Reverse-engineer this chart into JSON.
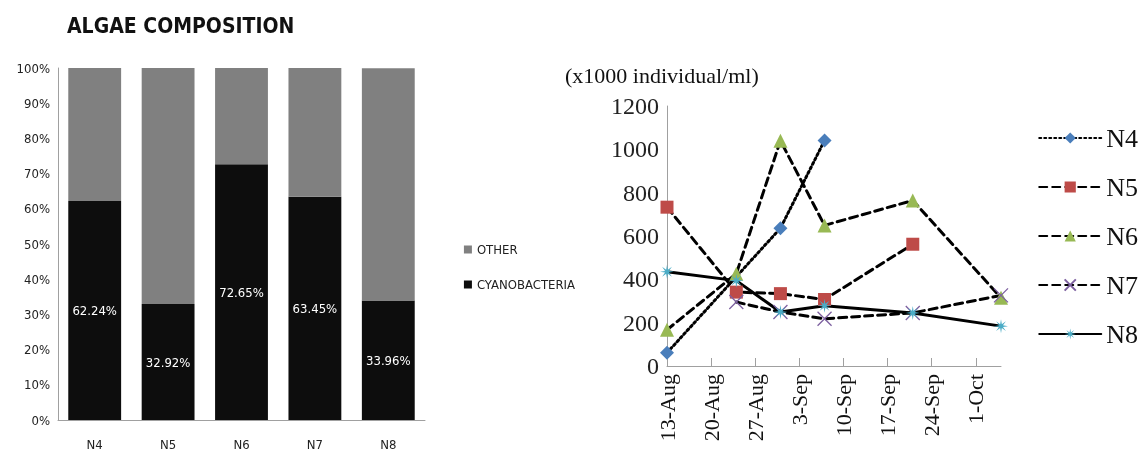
{
  "chart_data": [
    {
      "type": "bar",
      "title": "ALGAE COMPOSITION",
      "stacked": true,
      "categories": [
        "N4",
        "N5",
        "N6",
        "N7",
        "N8"
      ],
      "series": [
        {
          "name": "CYANOBACTERIA",
          "color": "#0d0d0d",
          "values": [
            62.24,
            32.92,
            72.65,
            63.45,
            33.96
          ],
          "value_labels": [
            "62.24%",
            "32.92%",
            "72.65%",
            "63.45%",
            "33.96%"
          ]
        },
        {
          "name": "OTHER",
          "color": "#808080",
          "values": [
            37.8,
            67.1,
            27.4,
            36.6,
            66.0
          ]
        }
      ],
      "ylim": [
        0,
        100
      ],
      "yticks": [
        {
          "value": 0,
          "label": "0%"
        },
        {
          "value": 10,
          "label": "10%"
        },
        {
          "value": 20,
          "label": "20%"
        },
        {
          "value": 30,
          "label": "30%"
        },
        {
          "value": 40,
          "label": "40%"
        },
        {
          "value": 50,
          "label": "50%"
        },
        {
          "value": 60,
          "label": "60%"
        },
        {
          "value": 70,
          "label": "70%"
        },
        {
          "value": 80,
          "label": "80%"
        },
        {
          "value": 90,
          "label": "90%"
        },
        {
          "value": 100,
          "label": "100%"
        }
      ],
      "grid": false,
      "legend": "right"
    },
    {
      "type": "line",
      "ylabel": "(x1000 individual/ml)",
      "series": [
        {
          "name": "N4",
          "color": "#4a7ebb",
          "marker": "diamond",
          "line_style": "dotted",
          "x": [
            "--08-13",
            "--08-31",
            "--09-07"
          ],
          "values": [
            61,
            636,
            1041
          ]
        },
        {
          "name": "N5",
          "color": "#be4b48",
          "marker": "square",
          "line_style": "dashed",
          "x": [
            "--08-13",
            "--08-24",
            "--08-31",
            "--09-07",
            "--09-21"
          ],
          "values": [
            733,
            341,
            334,
            307,
            562
          ]
        },
        {
          "name": "N6",
          "color": "#98b954",
          "marker": "triangle",
          "line_style": "dashed",
          "x": [
            "--08-13",
            "--08-24",
            "--08-31",
            "--09-07",
            "--09-21",
            "--10-05"
          ],
          "values": [
            167,
            426,
            1040,
            649,
            764,
            315
          ]
        },
        {
          "name": "N7",
          "color": "#7d60a0",
          "marker": "cross",
          "line_style": "dashed",
          "x": [
            "--08-24",
            "--08-31",
            "--09-07",
            "--09-21",
            "--10-05"
          ],
          "values": [
            295,
            249,
            218,
            245,
            326
          ]
        },
        {
          "name": "N8",
          "color": "#4bacc6",
          "marker": "star",
          "line_style": "solid",
          "x": [
            "--08-13",
            "--08-24",
            "--08-31",
            "--09-07",
            "--09-21",
            "--10-05"
          ],
          "values": [
            435,
            394,
            249,
            278,
            245,
            184
          ]
        }
      ],
      "xlim": [
        "--08-13",
        "--10-05"
      ],
      "xticks": [
        {
          "value": "--08-13",
          "label": "13-Aug"
        },
        {
          "value": "--08-20",
          "label": "20-Aug"
        },
        {
          "value": "--08-27",
          "label": "27-Aug"
        },
        {
          "value": "--09-03",
          "label": "3-Sep"
        },
        {
          "value": "--09-10",
          "label": "10-Sep"
        },
        {
          "value": "--09-17",
          "label": "17-Sep"
        },
        {
          "value": "--09-24",
          "label": "24-Sep"
        },
        {
          "value": "--10-01",
          "label": "1-Oct"
        }
      ],
      "ylim": [
        0,
        1200
      ],
      "yticks": [
        0,
        200,
        400,
        600,
        800,
        1000,
        1200
      ],
      "grid": false,
      "legend": "right"
    }
  ]
}
